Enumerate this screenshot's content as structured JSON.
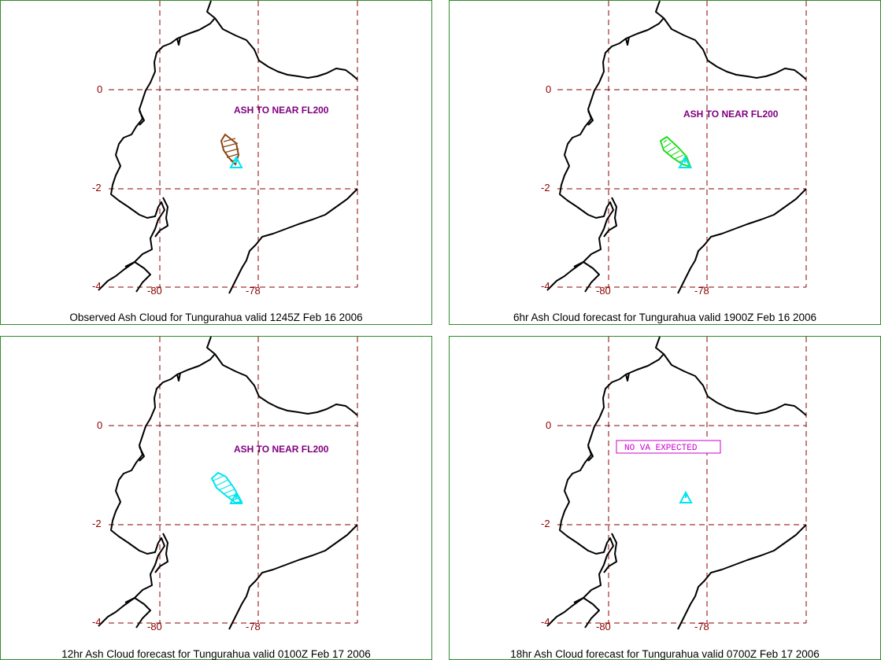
{
  "panels": [
    {
      "caption": "Observed Ash Cloud for Tungurahua valid 1245Z Feb 16 2006",
      "note": "ASH TO NEAR FL200",
      "note_boxed": false,
      "cloud_color": "#8b4513",
      "lat_labels": [
        "0",
        "-2",
        "-4"
      ],
      "lon_labels": [
        "-80",
        "-78"
      ]
    },
    {
      "caption": "6hr Ash Cloud forecast for Tungurahua valid 1900Z Feb 16 2006",
      "note": "ASH TO NEAR FL200",
      "note_boxed": false,
      "cloud_color": "#22dd22",
      "lat_labels": [
        "0",
        "-2",
        "-4"
      ],
      "lon_labels": [
        "-80",
        "-78"
      ]
    },
    {
      "caption": "12hr Ash Cloud forecast for Tungurahua valid 0100Z Feb 17 2006",
      "note": "ASH TO NEAR FL200",
      "note_boxed": false,
      "cloud_color": "#00e5ee",
      "lat_labels": [
        "0",
        "-2",
        "-4"
      ],
      "lon_labels": [
        "-80",
        "-78"
      ]
    },
    {
      "caption": "18hr Ash Cloud forecast for Tungurahua valid 0700Z Feb 17 2006",
      "note": "NO VA EXPECTED",
      "note_boxed": true,
      "cloud_color": null,
      "lat_labels": [
        "0",
        "-2",
        "-4"
      ],
      "lon_labels": [
        "-80",
        "-78"
      ]
    }
  ],
  "colors": {
    "panel_border": "#2e8b2e",
    "grid": "#8b0000",
    "coastline": "#000000",
    "volcano": "#00e5ee",
    "note": "#800080",
    "boxed_note": "#cc00cc"
  },
  "icons": {
    "volcano": "triangle-icon"
  }
}
